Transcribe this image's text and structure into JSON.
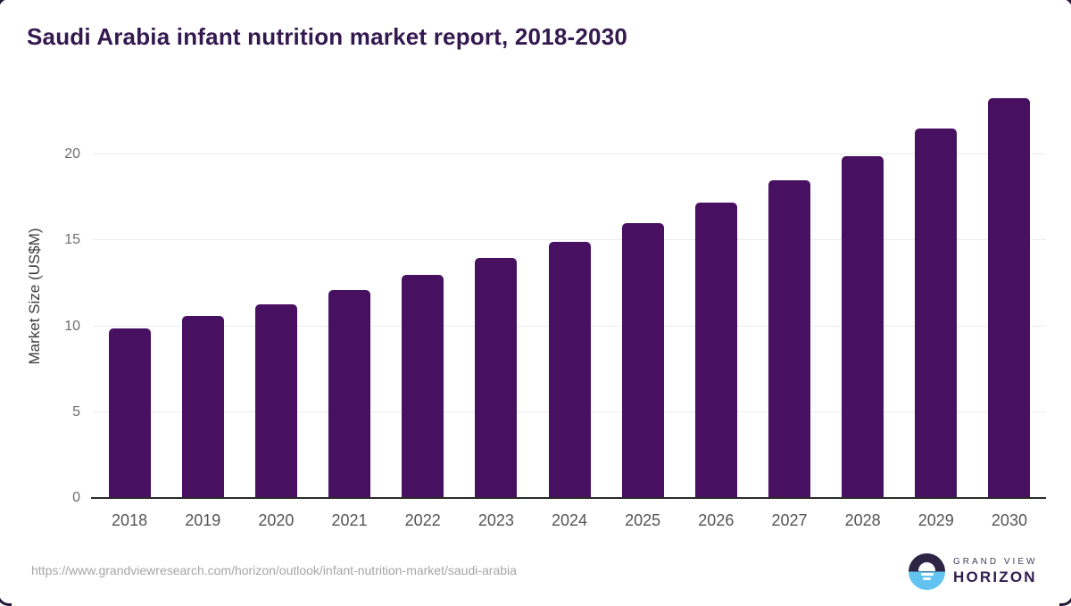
{
  "header": {
    "title": "Saudi Arabia infant nutrition market report, 2018-2030"
  },
  "chart_data": {
    "type": "bar",
    "title": "Saudi Arabia infant nutrition market report, 2018-2030",
    "categories": [
      "2018",
      "2019",
      "2020",
      "2021",
      "2022",
      "2023",
      "2024",
      "2025",
      "2026",
      "2027",
      "2028",
      "2029",
      "2030"
    ],
    "values": [
      9.9,
      10.6,
      11.3,
      12.1,
      13.0,
      14.0,
      14.9,
      16.0,
      17.2,
      18.5,
      19.9,
      21.5,
      23.3
    ],
    "xlabel": "",
    "ylabel": "Market Size (US$M)",
    "ylim": [
      0,
      25
    ],
    "yticks": [
      0,
      5,
      10,
      15,
      20
    ],
    "grid": true,
    "legend": false,
    "bar_color": "#481061"
  },
  "footer": {
    "source_url": "https://www.grandviewresearch.com/horizon/outlook/infant-nutrition-market/saudi-arabia",
    "logo": {
      "line1": "GRAND VIEW",
      "line2": "HORIZON"
    }
  },
  "colors": {
    "accent_purple": "#481061",
    "title_purple": "#33194f",
    "logo_dark": "#2e2545",
    "logo_blue": "#62c3f0",
    "gridline": "#ebebeb",
    "axis_line": "#2a2a2a",
    "tick_gray": "#6e6e6e",
    "url_gray": "#a5a5a5"
  }
}
